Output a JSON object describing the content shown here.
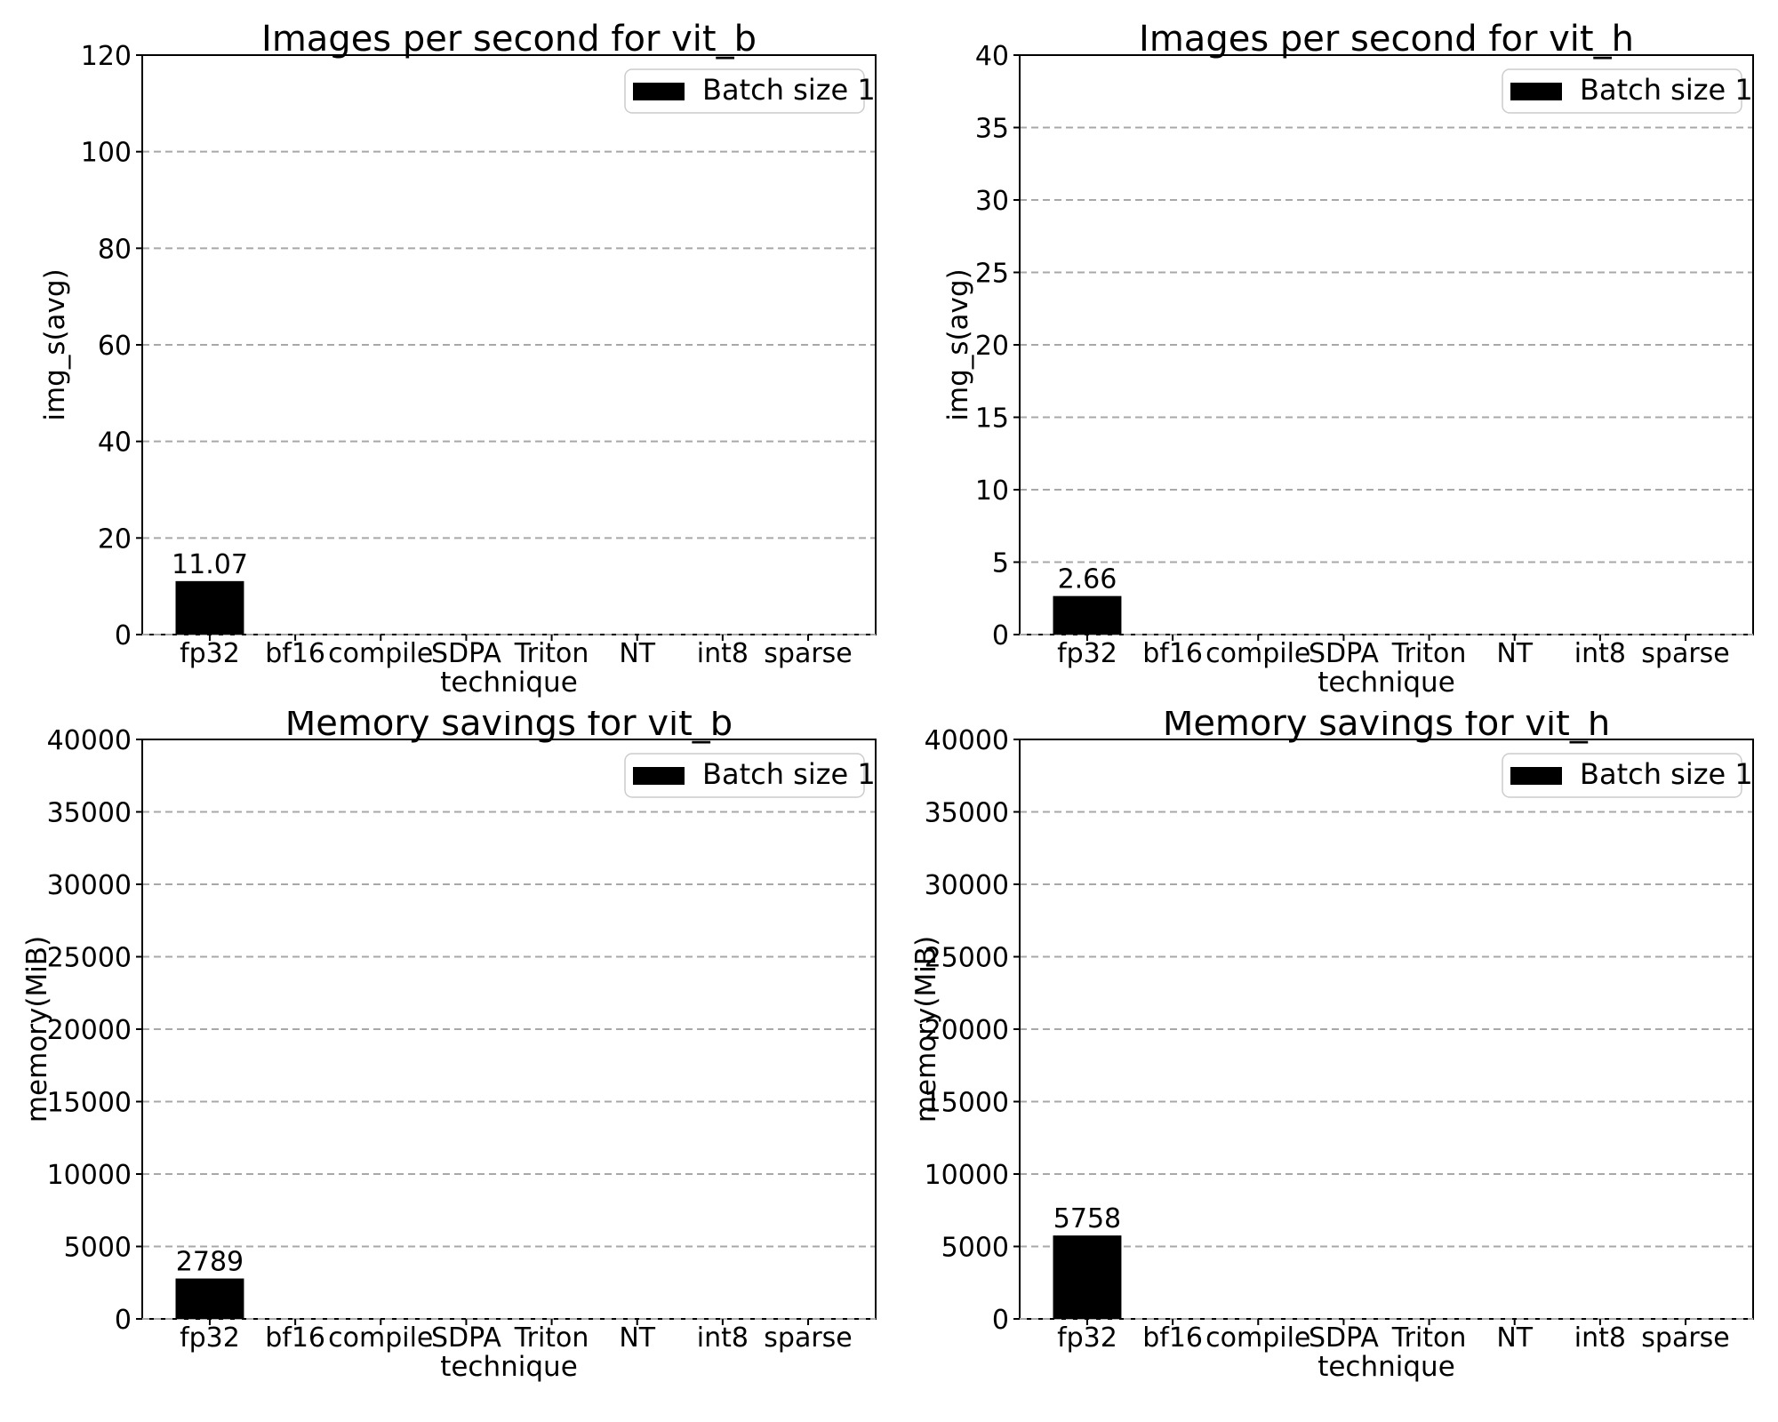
{
  "figure": {
    "background": "#ffffff",
    "grid_color": "#a8a8a8",
    "legend_border_color": "#cccccc",
    "bar_color": "#000000"
  },
  "chart_data": [
    {
      "id": "images-per-second-vit_b",
      "type": "bar",
      "title": "Images per second for vit_b",
      "xlabel": "technique",
      "ylabel": "img_s(avg)",
      "categories": [
        "fp32",
        "bf16",
        "compile",
        "SDPA",
        "Triton",
        "NT",
        "int8",
        "sparse"
      ],
      "series": [
        {
          "name": "Batch size 1",
          "color": "#000000",
          "values": [
            11.07,
            null,
            null,
            null,
            null,
            null,
            null,
            null
          ],
          "bar_labels": [
            "11.07",
            null,
            null,
            null,
            null,
            null,
            null,
            null
          ]
        }
      ],
      "ylim": [
        0,
        120
      ],
      "yticks": [
        0,
        20,
        40,
        60,
        80,
        100,
        120
      ],
      "grid": "horizontal-dashed",
      "legend": {
        "labels": [
          "Batch size 1"
        ],
        "location": "upper right"
      }
    },
    {
      "id": "images-per-second-vit_h",
      "type": "bar",
      "title": "Images per second for vit_h",
      "xlabel": "technique",
      "ylabel": "img_s(avg)",
      "categories": [
        "fp32",
        "bf16",
        "compile",
        "SDPA",
        "Triton",
        "NT",
        "int8",
        "sparse"
      ],
      "series": [
        {
          "name": "Batch size 1",
          "color": "#000000",
          "values": [
            2.66,
            null,
            null,
            null,
            null,
            null,
            null,
            null
          ],
          "bar_labels": [
            "2.66",
            null,
            null,
            null,
            null,
            null,
            null,
            null
          ]
        }
      ],
      "ylim": [
        0,
        40
      ],
      "yticks": [
        0,
        5,
        10,
        15,
        20,
        25,
        30,
        35,
        40
      ],
      "grid": "horizontal-dashed",
      "legend": {
        "labels": [
          "Batch size 1"
        ],
        "location": "upper right"
      }
    },
    {
      "id": "memory-savings-vit_b",
      "type": "bar",
      "title": "Memory savings for vit_b",
      "xlabel": "technique",
      "ylabel": "memory(MiB)",
      "categories": [
        "fp32",
        "bf16",
        "compile",
        "SDPA",
        "Triton",
        "NT",
        "int8",
        "sparse"
      ],
      "series": [
        {
          "name": "Batch size 1",
          "color": "#000000",
          "values": [
            2789,
            null,
            null,
            null,
            null,
            null,
            null,
            null
          ],
          "bar_labels": [
            "2789",
            null,
            null,
            null,
            null,
            null,
            null,
            null
          ]
        }
      ],
      "ylim": [
        0,
        40000
      ],
      "yticks": [
        0,
        5000,
        10000,
        15000,
        20000,
        25000,
        30000,
        35000,
        40000
      ],
      "grid": "horizontal-dashed",
      "legend": {
        "labels": [
          "Batch size 1"
        ],
        "location": "upper right"
      }
    },
    {
      "id": "memory-savings-vit_h",
      "type": "bar",
      "title": "Memory savings for vit_h",
      "xlabel": "technique",
      "ylabel": "memory(MiB)",
      "categories": [
        "fp32",
        "bf16",
        "compile",
        "SDPA",
        "Triton",
        "NT",
        "int8",
        "sparse"
      ],
      "series": [
        {
          "name": "Batch size 1",
          "color": "#000000",
          "values": [
            5758,
            null,
            null,
            null,
            null,
            null,
            null,
            null
          ],
          "bar_labels": [
            "5758",
            null,
            null,
            null,
            null,
            null,
            null,
            null
          ]
        }
      ],
      "ylim": [
        0,
        40000
      ],
      "yticks": [
        0,
        5000,
        10000,
        15000,
        20000,
        25000,
        30000,
        35000,
        40000
      ],
      "grid": "horizontal-dashed",
      "legend": {
        "labels": [
          "Batch size 1"
        ],
        "location": "upper right"
      }
    }
  ]
}
